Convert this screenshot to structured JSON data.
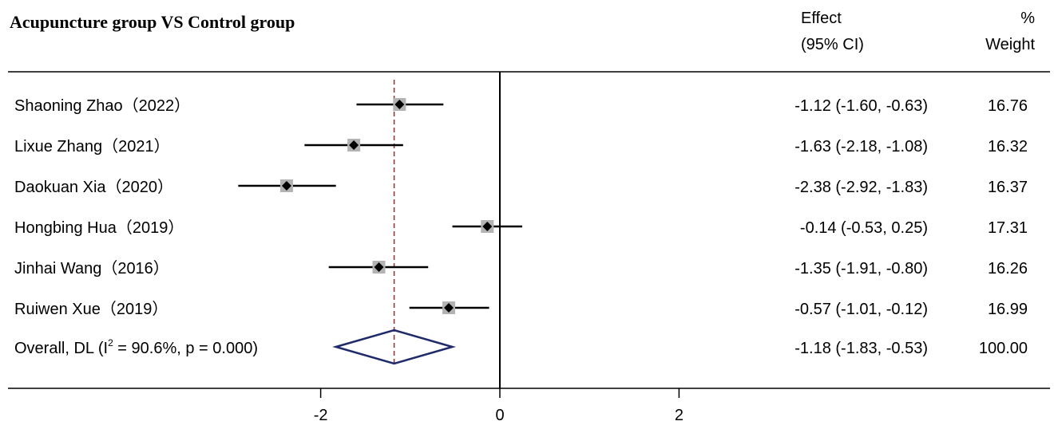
{
  "chart_data": {
    "type": "forest",
    "title": "Acupuncture group VS Control group",
    "columns": {
      "effect": [
        "Effect",
        "(95% CI)"
      ],
      "weight": [
        "%",
        "Weight"
      ]
    },
    "studies": [
      {
        "label": "Shaoning Zhao（2022）",
        "estimate": -1.12,
        "lower": -1.6,
        "upper": -0.63,
        "effect_text": "-1.12 (-1.60, -0.63)",
        "weight": "16.76"
      },
      {
        "label": "Lixue Zhang（2021）",
        "estimate": -1.63,
        "lower": -2.18,
        "upper": -1.08,
        "effect_text": "-1.63 (-2.18, -1.08)",
        "weight": "16.32"
      },
      {
        "label": "Daokuan Xia（2020）",
        "estimate": -2.38,
        "lower": -2.92,
        "upper": -1.83,
        "effect_text": "-2.38 (-2.92, -1.83)",
        "weight": "16.37"
      },
      {
        "label": "Hongbing Hua（2019）",
        "estimate": -0.14,
        "lower": -0.53,
        "upper": 0.25,
        "effect_text": "-0.14 (-0.53, 0.25)",
        "weight": "17.31"
      },
      {
        "label": "Jinhai Wang（2016）",
        "estimate": -1.35,
        "lower": -1.91,
        "upper": -0.8,
        "effect_text": "-1.35 (-1.91, -0.80)",
        "weight": "16.26"
      },
      {
        "label": "Ruiwen Xue（2019）",
        "estimate": -0.57,
        "lower": -1.01,
        "upper": -0.12,
        "effect_text": "-0.57 (-1.01, -0.12)",
        "weight": "16.99"
      }
    ],
    "overall": {
      "label_prefix": "Overall, DL (I",
      "label_sup": "2",
      "label_suffix": " = 90.6%, p = 0.000)",
      "estimate": -1.18,
      "lower": -1.83,
      "upper": -0.53,
      "effect_text": "-1.18 (-1.83, -0.53)",
      "weight": "100.00"
    },
    "x_ticks": [
      "-2",
      "0",
      "2"
    ],
    "x_tick_values": [
      -2,
      0,
      2
    ],
    "xlim": [
      -3.5,
      3.14
    ],
    "null_line": 0,
    "colors": {
      "marker": "#000000",
      "weight_box": "#b3b3b3",
      "overall_diamond": "#1f2a6b",
      "overall_line": "#8b2f2f"
    }
  }
}
